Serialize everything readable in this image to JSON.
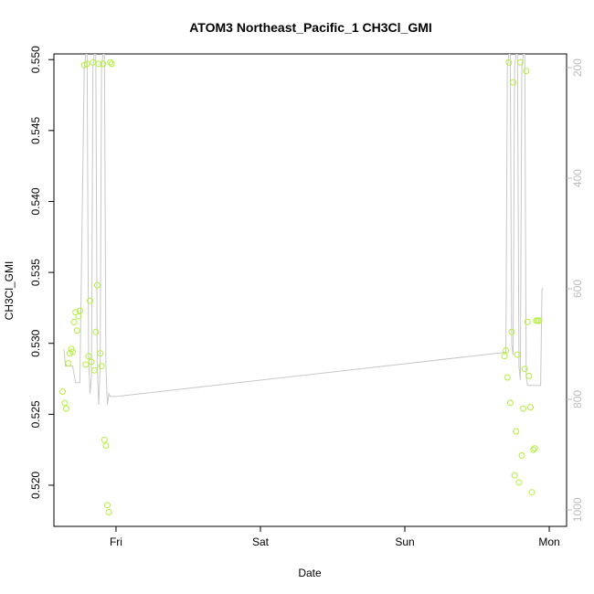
{
  "chart_data": {
    "type": "scatter",
    "title": "ATOM3 Northeast_Pacific_1 CH3Cl_GMI",
    "xlabel": "Date",
    "ylabel": "CH3Cl_GMI",
    "x_unit": "days",
    "xlim": [
      -0.43,
      3.12
    ],
    "ylim": [
      0.5171,
      0.5504
    ],
    "x_ticks": [
      {
        "value": 0,
        "label": "Fri"
      },
      {
        "value": 1,
        "label": "Sat"
      },
      {
        "value": 2,
        "label": "Sun"
      },
      {
        "value": 3,
        "label": "Mon"
      }
    ],
    "y_ticks": [
      0.52,
      0.525,
      0.53,
      0.535,
      0.54,
      0.545,
      0.55
    ],
    "y_tick_labels": [
      "0.520",
      "0.525",
      "0.530",
      "0.535",
      "0.540",
      "0.545",
      "0.550"
    ],
    "y2": {
      "reversed": true,
      "lim": [
        175,
        1030
      ],
      "ticks": [
        200,
        400,
        600,
        800,
        1000
      ],
      "tick_labels": [
        "200",
        "400",
        "600",
        "800",
        "1000"
      ],
      "color": "#bdbdbd"
    },
    "grid": false,
    "series": [
      {
        "kind": "points",
        "color": "#b2f03c",
        "x": [
          -0.37,
          -0.355,
          -0.345,
          -0.33,
          -0.32,
          -0.31,
          -0.3,
          -0.29,
          -0.28,
          -0.27,
          -0.26,
          -0.25,
          -0.22,
          -0.21,
          -0.2,
          -0.19,
          -0.18,
          -0.17,
          -0.16,
          -0.15,
          -0.14,
          -0.13,
          -0.12,
          -0.11,
          -0.1,
          -0.09,
          -0.08,
          -0.07,
          -0.06,
          -0.05,
          -0.04,
          -0.03,
          2.69,
          2.7,
          2.71,
          2.72,
          2.73,
          2.74,
          2.75,
          2.76,
          2.77,
          2.78,
          2.79,
          2.8,
          2.81,
          2.82,
          2.83,
          2.84,
          2.85,
          2.86,
          2.87,
          2.88,
          2.89,
          2.9,
          2.91,
          2.92,
          2.93
        ],
        "y": [
          0.5266,
          0.5258,
          0.5254,
          0.5286,
          0.5293,
          0.5296,
          0.5294,
          0.5315,
          0.5322,
          0.5309,
          0.5319,
          0.5323,
          0.5496,
          0.5285,
          0.5497,
          0.5291,
          0.533,
          0.5287,
          0.5498,
          0.5281,
          0.5308,
          0.5341,
          0.5497,
          0.5293,
          0.5284,
          0.5497,
          0.5232,
          0.5228,
          0.5186,
          0.5181,
          0.5498,
          0.5497,
          0.5291,
          0.5295,
          0.5276,
          0.5498,
          0.5258,
          0.5308,
          0.5484,
          0.5207,
          0.5238,
          0.5292,
          0.5202,
          0.5498,
          0.5221,
          0.5254,
          0.5282,
          0.5492,
          0.5315,
          0.5277,
          0.5255,
          0.5195,
          0.5225,
          0.5226,
          0.5316,
          0.5316,
          0.5316
        ]
      },
      {
        "kind": "line",
        "color": "#c8c8c8",
        "axis": "y2",
        "x": [
          -0.36,
          -0.35,
          -0.33,
          -0.3,
          -0.28,
          -0.25,
          -0.22,
          -0.21,
          -0.2,
          -0.19,
          -0.18,
          -0.17,
          -0.16,
          -0.15,
          -0.14,
          -0.13,
          -0.12,
          -0.11,
          -0.1,
          -0.09,
          -0.08,
          -0.07,
          -0.06,
          -0.05,
          -0.04,
          -0.03,
          -0.02,
          -0.01,
          0.0,
          2.7,
          2.71,
          2.72,
          2.73,
          2.74,
          2.75,
          2.76,
          2.77,
          2.78,
          2.79,
          2.8,
          2.81,
          2.82,
          2.83,
          2.84,
          2.85,
          2.86,
          2.87,
          2.88,
          2.89,
          2.9,
          2.91,
          2.92,
          2.93,
          2.94,
          2.95,
          2.96
        ],
        "y": [
          710,
          740,
          740,
          740,
          770,
          770,
          200,
          175,
          175,
          720,
          790,
          760,
          200,
          175,
          175,
          740,
          810,
          740,
          200,
          175,
          175,
          740,
          810,
          790,
          795,
          795,
          795,
          795,
          795,
          715,
          200,
          175,
          175,
          700,
          720,
          200,
          175,
          175,
          740,
          765,
          200,
          175,
          175,
          760,
          775,
          775,
          775,
          775,
          775,
          775,
          775,
          775,
          775,
          775,
          600,
          600
        ]
      }
    ]
  }
}
